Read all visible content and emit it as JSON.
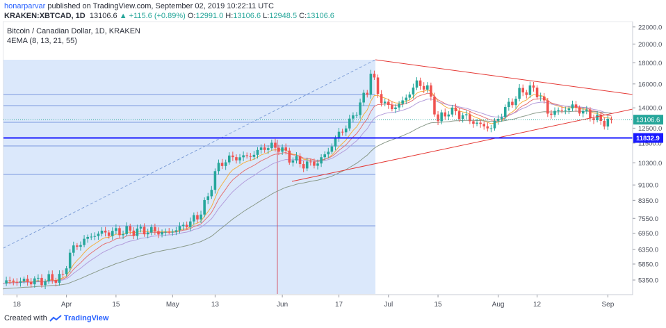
{
  "header": {
    "user": "honarparvar",
    "published_text": "published on TradingView.com, September 02, 2019 10:22:11 UTC",
    "symbol_line": "KRAKEN:XBTCAD, 1D",
    "last_value": "13106.6",
    "change": "+115.6 (+0.89%)",
    "o_label": "O:",
    "o_value": "12991.0",
    "h_label": "H:",
    "h_value": "13106.6",
    "l_label": "L:",
    "l_value": "12948.5",
    "c_label": "C:",
    "c_value": "13106.6"
  },
  "legend": {
    "title": "Bitcoin / Canadian Dollar, 1D, KRAKEN",
    "indicator": "4EMA (8, 13, 21, 55)"
  },
  "footer": {
    "created_with": "Created with",
    "brand": "TradingView"
  },
  "colors": {
    "up": "#26a69a",
    "down": "#ef5350",
    "ema8": "#f5b041",
    "ema13": "#e57373",
    "ema21": "#b39ddb",
    "ema55": "#8a9a8a",
    "trend": "#e53935",
    "support": "#1a1aff",
    "highlight": "#dbe8fb",
    "hline": "#5b7fd6"
  },
  "chart_data": {
    "type": "candlestick",
    "title": "Bitcoin / Canadian Dollar, 1D, KRAKEN",
    "y_scale": "log",
    "ylim": [
      4950,
      22500
    ],
    "y_ticks": [
      "22000.0",
      "20000.0",
      "18000.0",
      "16000.0",
      "14000.0",
      "12500.0",
      "11500.0",
      "10300.0",
      "9100.0",
      "8350.0",
      "7550.0",
      "6950.0",
      "6350.0",
      "5850.0",
      "5350.0"
    ],
    "x_ticks": [
      {
        "label": "18",
        "date": "2019-03-18"
      },
      {
        "label": "Apr",
        "date": "2019-04-01"
      },
      {
        "label": "15",
        "date": "2019-04-15"
      },
      {
        "label": "May",
        "date": "2019-05-01"
      },
      {
        "label": "13",
        "date": "2019-05-13"
      },
      {
        "label": "Jun",
        "date": "2019-06-01"
      },
      {
        "label": "17",
        "date": "2019-06-17"
      },
      {
        "label": "Jul",
        "date": "2019-07-01"
      },
      {
        "label": "15",
        "date": "2019-07-15"
      },
      {
        "label": "Aug",
        "date": "2019-08-01"
      },
      {
        "label": "12",
        "date": "2019-08-12"
      },
      {
        "label": "Sep",
        "date": "2019-09-01"
      }
    ],
    "xlim": [
      "2019-03-14",
      "2019-09-08"
    ],
    "last_price_label": "13106.6",
    "support_level_label": "11832.9",
    "close_path": [
      {
        "date": "2019-03-14",
        "close": 5300
      },
      {
        "date": "2019-03-25",
        "close": 5330
      },
      {
        "date": "2019-03-31",
        "close": 5450
      },
      {
        "date": "2019-04-02",
        "close": 6250
      },
      {
        "date": "2019-04-06",
        "close": 6700
      },
      {
        "date": "2019-04-10",
        "close": 6950
      },
      {
        "date": "2019-04-20",
        "close": 7050
      },
      {
        "date": "2019-04-25",
        "close": 7050
      },
      {
        "date": "2019-04-29",
        "close": 6950
      },
      {
        "date": "2019-05-03",
        "close": 7150
      },
      {
        "date": "2019-05-08",
        "close": 7600
      },
      {
        "date": "2019-05-11",
        "close": 8450
      },
      {
        "date": "2019-05-13",
        "close": 9800
      },
      {
        "date": "2019-05-16",
        "close": 10500
      },
      {
        "date": "2019-05-19",
        "close": 10600
      },
      {
        "date": "2019-05-23",
        "close": 10700
      },
      {
        "date": "2019-05-27",
        "close": 11250
      },
      {
        "date": "2019-05-31",
        "close": 11250
      },
      {
        "date": "2019-06-03",
        "close": 10600
      },
      {
        "date": "2019-06-07",
        "close": 10200
      },
      {
        "date": "2019-06-11",
        "close": 10300
      },
      {
        "date": "2019-06-14",
        "close": 11000
      },
      {
        "date": "2019-06-17",
        "close": 12100
      },
      {
        "date": "2019-06-20",
        "close": 12900
      },
      {
        "date": "2019-06-23",
        "close": 14300
      },
      {
        "date": "2019-06-25",
        "close": 15400
      },
      {
        "date": "2019-06-26",
        "close": 17200
      },
      {
        "date": "2019-06-28",
        "close": 15100
      },
      {
        "date": "2019-07-01",
        "close": 14000
      },
      {
        "date": "2019-07-04",
        "close": 14200
      },
      {
        "date": "2019-07-07",
        "close": 15200
      },
      {
        "date": "2019-07-09",
        "close": 16100
      },
      {
        "date": "2019-07-12",
        "close": 15600
      },
      {
        "date": "2019-07-15",
        "close": 13000
      },
      {
        "date": "2019-07-18",
        "close": 13800
      },
      {
        "date": "2019-07-22",
        "close": 13400
      },
      {
        "date": "2019-07-26",
        "close": 12800
      },
      {
        "date": "2019-07-30",
        "close": 12500
      },
      {
        "date": "2019-08-03",
        "close": 13900
      },
      {
        "date": "2019-08-07",
        "close": 15200
      },
      {
        "date": "2019-08-10",
        "close": 15600
      },
      {
        "date": "2019-08-13",
        "close": 15000
      },
      {
        "date": "2019-08-15",
        "close": 13600
      },
      {
        "date": "2019-08-19",
        "close": 13800
      },
      {
        "date": "2019-08-22",
        "close": 14100
      },
      {
        "date": "2019-08-25",
        "close": 13700
      },
      {
        "date": "2019-08-28",
        "close": 13300
      },
      {
        "date": "2019-08-30",
        "close": 12950
      },
      {
        "date": "2019-09-02",
        "close": 13106.6
      }
    ]
  }
}
